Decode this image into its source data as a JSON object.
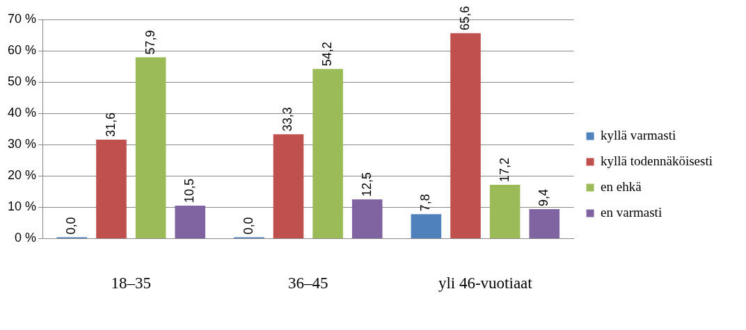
{
  "chart_data": {
    "type": "bar",
    "categories": [
      "18–35",
      "36–45",
      "yli 46-vuotiaat"
    ],
    "series": [
      {
        "name": "kyllä varmasti",
        "color": "#4f81bd",
        "values": [
          0,
          0,
          7.8
        ],
        "value_labels": [
          "0,0",
          "0,0",
          "7,8"
        ]
      },
      {
        "name": "kyllä todennäköisesti",
        "color": "#c0504d",
        "values": [
          31.6,
          33.3,
          65.6
        ],
        "value_labels": [
          "31,6",
          "33,3",
          "65,6"
        ]
      },
      {
        "name": "en ehkä",
        "color": "#9bbb59",
        "values": [
          57.9,
          54.2,
          17.2
        ],
        "value_labels": [
          "57,9",
          "54,2",
          "17,2"
        ]
      },
      {
        "name": "en varmasti",
        "color": "#8064a2",
        "values": [
          10.5,
          12.5,
          9.4
        ],
        "value_labels": [
          "10,5",
          "12,5",
          "9,4"
        ]
      }
    ],
    "ylim": [
      0,
      70
    ],
    "yticks": [
      {
        "value": 0,
        "label": "0 %"
      },
      {
        "value": 10,
        "label": "10 %"
      },
      {
        "value": 20,
        "label": "20 %"
      },
      {
        "value": 30,
        "label": "30 %"
      },
      {
        "value": 40,
        "label": "40 %"
      },
      {
        "value": 50,
        "label": "50 %"
      },
      {
        "value": 60,
        "label": "60 %"
      },
      {
        "value": 70,
        "label": "70 %"
      }
    ],
    "grid": "y",
    "legend": "right"
  }
}
